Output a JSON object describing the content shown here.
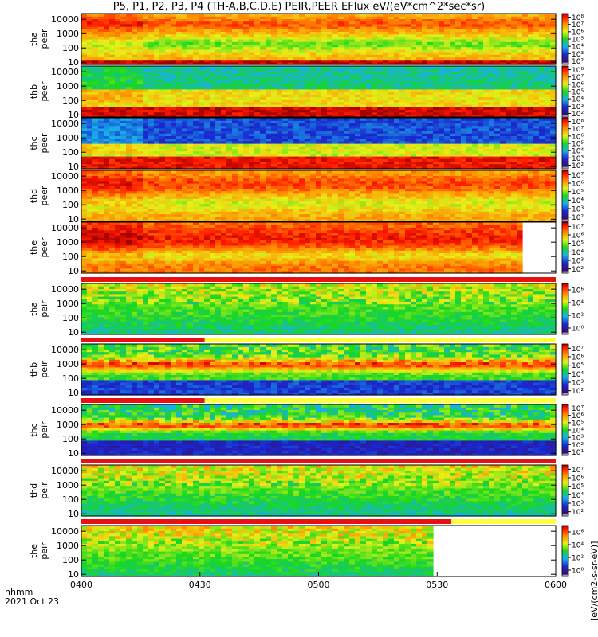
{
  "title": "P5, P1, P2, P3, P4 (TH-A,B,C,D,E) PEIR,PEER EFlux eV/(eV*cm^2*sec*sr)",
  "units_label": "[eV/(cm2-s-sr-eV)]",
  "time_axis": {
    "label": "hhmm",
    "date": "2021 Oct 23"
  },
  "colors": {
    "low": "#1e1aa0",
    "mid": "#18e016",
    "high": "#ff2000",
    "saturated": "#a00000"
  },
  "chart_data": {
    "type": "heatmap",
    "x_ticks": [
      "0400",
      "0430",
      "0500",
      "0530",
      "0600"
    ],
    "x_range": [
      "04:00",
      "06:00"
    ],
    "y_scale": "log",
    "y_ticks": [
      "10",
      "100",
      "1000",
      "10000"
    ],
    "ylim": [
      7,
      25000
    ],
    "panels": [
      {
        "probe": "tha",
        "species": "peer",
        "colorbar_ticks": [
          "10²",
          "10³",
          "10⁴",
          "10⁵",
          "10⁶",
          "10⁷",
          "10⁸"
        ],
        "data_end_fraction": 1.0
      },
      {
        "probe": "thb",
        "species": "peer",
        "colorbar_ticks": [
          "10²",
          "10³",
          "10⁴",
          "10⁵",
          "10⁶",
          "10⁷",
          "10⁸"
        ],
        "data_end_fraction": 1.0
      },
      {
        "probe": "thc",
        "species": "peer",
        "colorbar_ticks": [
          "10²",
          "10³",
          "10⁴",
          "10⁵",
          "10⁶",
          "10⁷",
          "10⁸"
        ],
        "data_end_fraction": 1.0
      },
      {
        "probe": "thd",
        "species": "peer",
        "colorbar_ticks": [
          "10²",
          "10³",
          "10⁴",
          "10⁵",
          "10⁶",
          "10⁷"
        ],
        "data_end_fraction": 1.0
      },
      {
        "probe": "the",
        "species": "peer",
        "colorbar_ticks": [
          "10²",
          "10³",
          "10⁴",
          "10⁵",
          "10⁶",
          "10⁷"
        ],
        "data_end_fraction": 0.925
      },
      {
        "probe": "tha",
        "species": "peir",
        "colorbar_ticks": [
          "10⁰",
          "10²",
          "10⁴",
          "10⁶"
        ],
        "data_end_fraction": 1.0
      },
      {
        "probe": "thb",
        "species": "peir",
        "colorbar_ticks": [
          "10²",
          "10³",
          "10⁴",
          "10⁵",
          "10⁶",
          "10⁷"
        ],
        "data_end_fraction": 1.0
      },
      {
        "probe": "thc",
        "species": "peir",
        "colorbar_ticks": [
          "10¹",
          "10²",
          "10³",
          "10⁴",
          "10⁵",
          "10⁶",
          "10⁷"
        ],
        "data_end_fraction": 1.0
      },
      {
        "probe": "thd",
        "species": "peir",
        "colorbar_ticks": [
          "10²",
          "10³",
          "10⁴",
          "10⁵",
          "10⁶",
          "10⁷"
        ],
        "data_end_fraction": 1.0
      },
      {
        "probe": "the",
        "species": "peir",
        "colorbar_ticks": [
          "10⁰",
          "10²",
          "10⁴",
          "10⁶"
        ],
        "data_end_fraction": 0.74
      }
    ],
    "mode_bars": [
      {
        "after_panel": 5,
        "red_end_fraction": 1.0
      },
      {
        "after_panel": 6,
        "red_end_fraction": 0.26
      },
      {
        "after_panel": 7,
        "red_end_fraction": 0.26
      },
      {
        "after_panel": 8,
        "red_end_fraction": 1.0
      },
      {
        "after_panel": 9,
        "red_end_fraction": 0.78
      }
    ]
  }
}
